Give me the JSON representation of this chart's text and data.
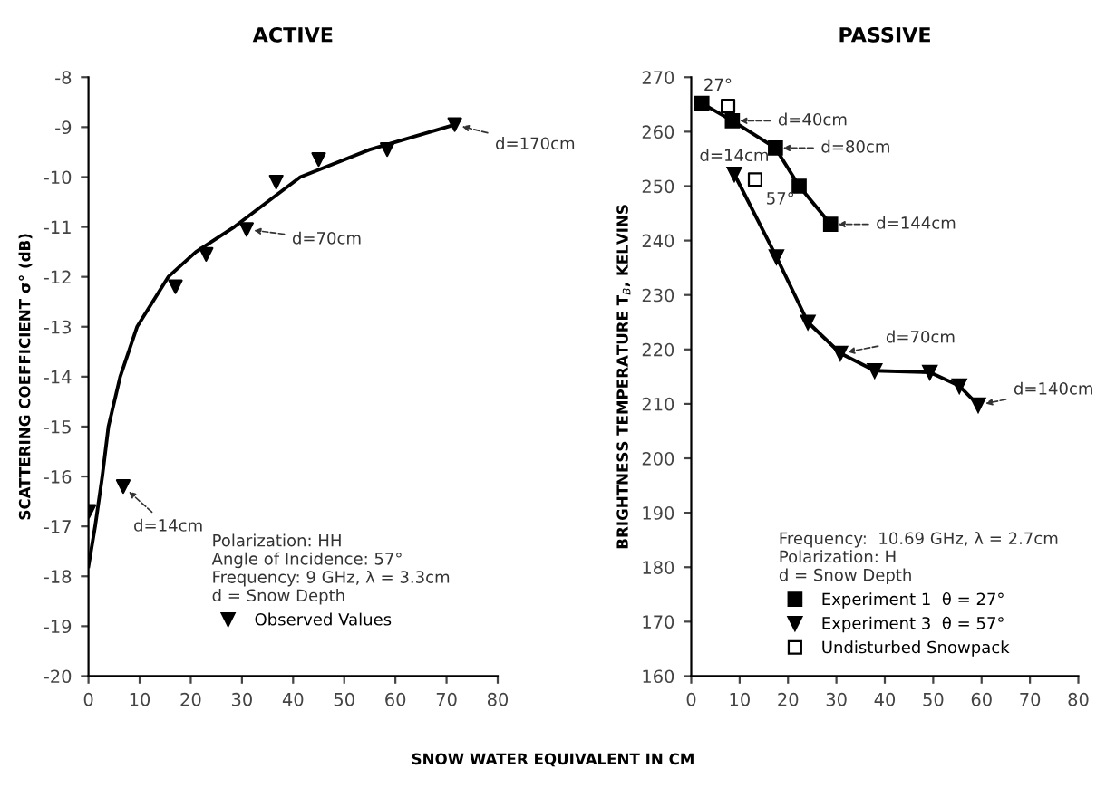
{
  "chart_data": [
    {
      "type": "scatter",
      "title": "ACTIVE",
      "xlabel": "SNOW WATER EQUIVALENT IN CM",
      "ylabel": "SCATTERING COEFFICIENT σ° (dB)",
      "legend_title": "Polarization: HH\nAngle of Incidence: 57°\nFrequency: 9 GHz, λ = 3.3cm\nd = Snow Depth",
      "legend": "lower right",
      "xlim": [
        0,
        80
      ],
      "xticks": [
        0,
        10,
        20,
        30,
        40,
        50,
        60,
        70,
        80
      ],
      "ylim": [
        -20,
        -8
      ],
      "yticks": [
        -8,
        -9,
        -10,
        -11,
        -12,
        -13,
        -14,
        -15,
        -16,
        -17,
        -18,
        -19,
        -20
      ],
      "grid": false,
      "series": [
        {
          "type": "line",
          "color": "#000000",
          "marker": "none",
          "x": [
            0,
            1.3,
            2.7,
            3.9,
            6.2,
            9.5,
            15.6,
            21,
            28.5,
            41.4,
            55,
            71.6
          ],
          "values": [
            -17.8,
            -17,
            -16,
            -15,
            -14,
            -13,
            -12,
            -11.5,
            -11,
            -10,
            -9.45,
            -8.95
          ]
        },
        {
          "name": "Observed Values",
          "color": "#000000",
          "marker": "triangle",
          "x": [
            0.1,
            6.8,
            17.0,
            23.0,
            30.9,
            36.7,
            45.0,
            58.4,
            71.6
          ],
          "values": [
            -16.7,
            -16.2,
            -12.2,
            -11.55,
            -11.05,
            -10.1,
            -9.65,
            -9.45,
            -8.95
          ]
        }
      ],
      "annotations": [
        {
          "text": "d=170cm",
          "x": 71.6,
          "y": -8.95
        },
        {
          "text": "d=70cm",
          "x": 30.9,
          "y": -11.05
        },
        {
          "text": "d=14cm",
          "x": 6.8,
          "y": -16.2
        }
      ]
    },
    {
      "type": "line",
      "title": "PASSIVE",
      "ylabel": "BRIGHTNESS TEMPERATURE T$_{B}$, KELVINS",
      "legend_title": "Frequency:  10.69 GHz, λ = 2.7cm\nPolarization: H\nd = Snow Depth",
      "legend": "lower right",
      "xlim": [
        0,
        80
      ],
      "xticks": [
        0,
        10,
        20,
        30,
        40,
        50,
        60,
        70,
        80
      ],
      "ylim": [
        160,
        270
      ],
      "yticks": [
        160,
        170,
        180,
        190,
        200,
        210,
        220,
        230,
        240,
        250,
        260,
        270
      ],
      "grid": false,
      "series": [
        {
          "name": "Experiment 1  θ = 27°",
          "color": "#000000",
          "marker": "square",
          "x": [
            2.2,
            8.5,
            17.4,
            22.3,
            28.8
          ],
          "values": [
            265.2,
            262,
            257,
            250,
            243
          ]
        },
        {
          "name": "Experiment 3  θ = 57°",
          "color": "#000000",
          "marker": "triangle",
          "x": [
            8.9,
            17.6,
            24.1,
            30.8,
            37.9,
            49.3,
            55.4,
            59.3
          ],
          "values": [
            252.2,
            237,
            225,
            219.3,
            216.1,
            215.8,
            213.3,
            209.8
          ]
        },
        {
          "type": "scatter",
          "name": "Undisturbed Snowpack",
          "color": "#ffffff",
          "marker": "square",
          "x": [
            7.6,
            13.2
          ],
          "values": [
            264.7,
            251.2
          ]
        }
      ],
      "annotations": [
        {
          "text": "27°",
          "x": 7.6,
          "y": 264.7
        },
        {
          "text": "57°",
          "x": 13.2,
          "y": 251.2
        },
        {
          "text": "d=40cm",
          "x": 8.5,
          "y": 262
        },
        {
          "text": "d=80cm",
          "x": 17.4,
          "y": 257
        },
        {
          "text": "d=144cm",
          "x": 28.8,
          "y": 243
        },
        {
          "text": "d=14cm",
          "x": 8.9,
          "y": 252.2
        },
        {
          "text": "d=70cm",
          "x": 30.8,
          "y": 219.3
        },
        {
          "text": "d=140cm",
          "x": 59.3,
          "y": 209.8
        }
      ]
    }
  ]
}
